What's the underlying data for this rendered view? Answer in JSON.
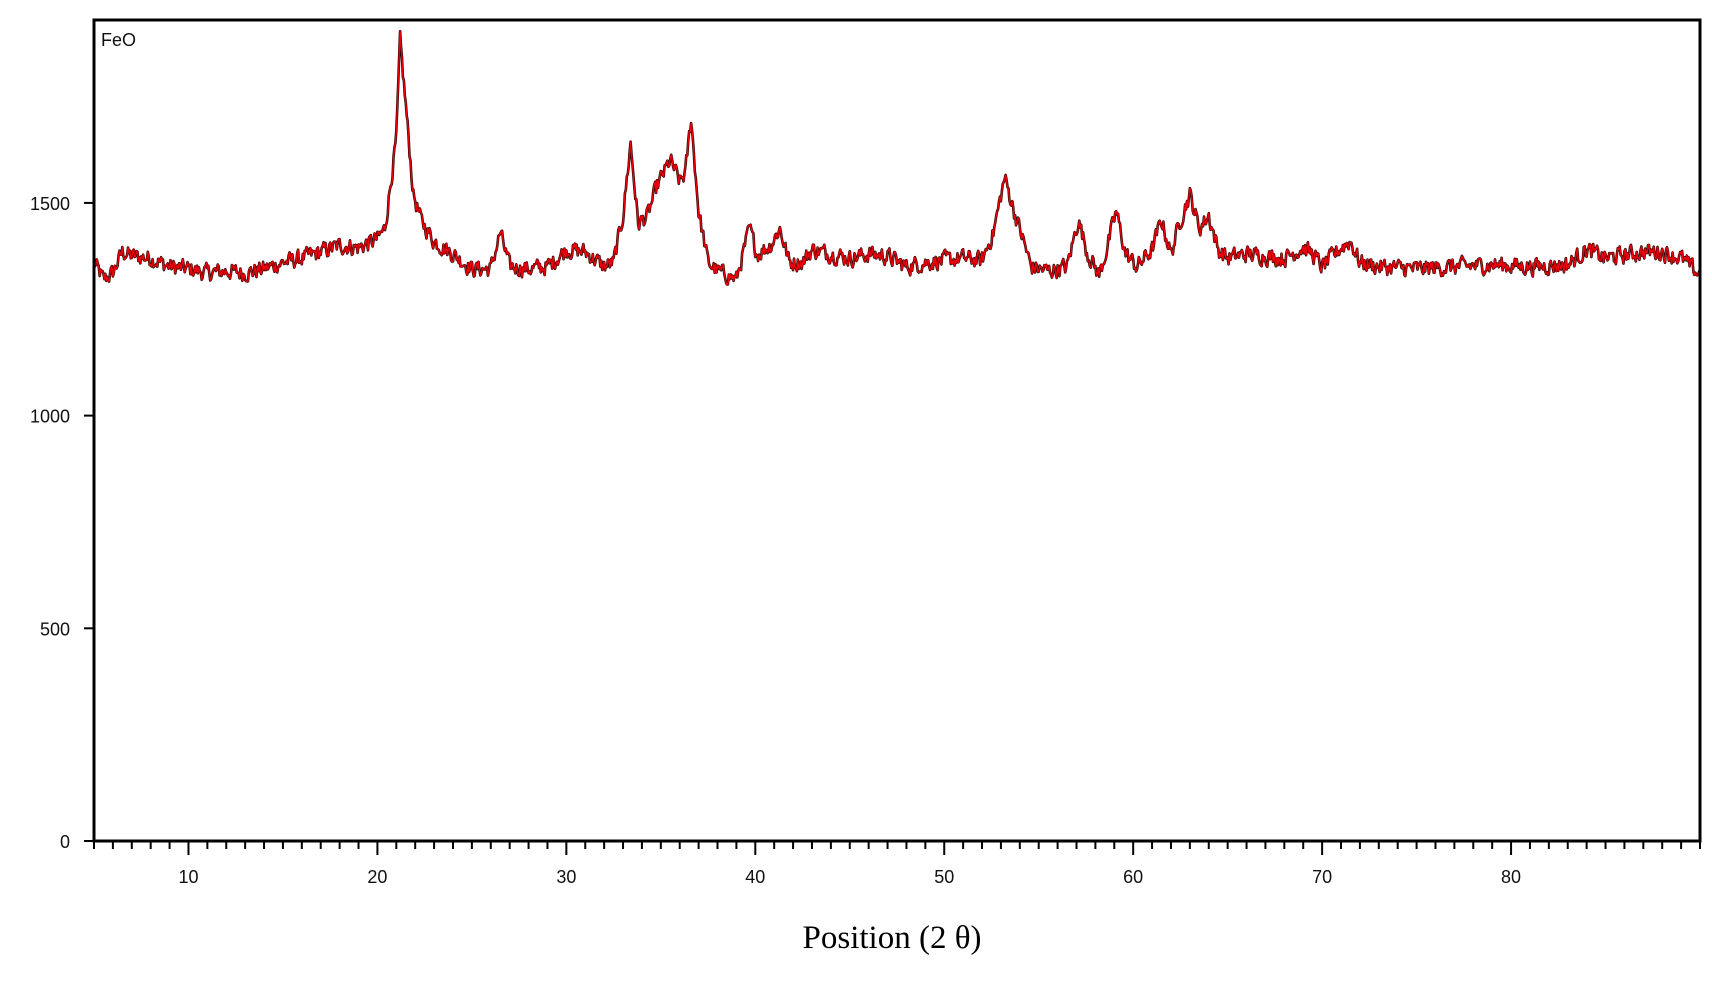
{
  "chart_data": {
    "type": "line",
    "title": "",
    "annotation": "FeO",
    "xlabel": "Position (2 θ)",
    "ylabel": "",
    "xlim": [
      5,
      90
    ],
    "ylim": [
      0,
      1930
    ],
    "x_ticks": [
      10,
      20,
      30,
      40,
      50,
      60,
      70,
      80
    ],
    "y_ticks": [
      0,
      500,
      1000,
      1500
    ],
    "x_minor_step": 1,
    "grid": false,
    "legend": "none",
    "series": [
      {
        "color": "#e8000b",
        "outline_color": "#2a0000",
        "baseline": [
          [
            5.0,
            1360
          ],
          [
            5.5,
            1320
          ],
          [
            6.0,
            1335
          ],
          [
            6.5,
            1385
          ],
          [
            7.0,
            1375
          ],
          [
            8.0,
            1370
          ],
          [
            9.0,
            1350
          ],
          [
            10.0,
            1345
          ],
          [
            11.0,
            1335
          ],
          [
            12.0,
            1340
          ],
          [
            13.0,
            1335
          ],
          [
            14.0,
            1345
          ],
          [
            15.0,
            1360
          ],
          [
            16.0,
            1370
          ],
          [
            17.0,
            1385
          ],
          [
            18.0,
            1400
          ],
          [
            19.0,
            1395
          ],
          [
            20.0,
            1415
          ],
          [
            20.4,
            1440
          ],
          [
            21.0,
            1650
          ],
          [
            21.2,
            1880
          ],
          [
            21.5,
            1730
          ],
          [
            21.9,
            1520
          ],
          [
            22.3,
            1460
          ],
          [
            23.0,
            1410
          ],
          [
            24.0,
            1380
          ],
          [
            25.0,
            1345
          ],
          [
            26.0,
            1345
          ],
          [
            26.5,
            1430
          ],
          [
            27.0,
            1350
          ],
          [
            28.0,
            1345
          ],
          [
            29.0,
            1350
          ],
          [
            30.0,
            1390
          ],
          [
            31.0,
            1385
          ],
          [
            32.0,
            1350
          ],
          [
            32.5,
            1360
          ],
          [
            33.0,
            1470
          ],
          [
            33.4,
            1640
          ],
          [
            33.8,
            1450
          ],
          [
            34.3,
            1470
          ],
          [
            34.8,
            1540
          ],
          [
            35.5,
            1600
          ],
          [
            36.0,
            1550
          ],
          [
            36.3,
            1570
          ],
          [
            36.6,
            1700
          ],
          [
            37.0,
            1480
          ],
          [
            37.5,
            1360
          ],
          [
            38.0,
            1340
          ],
          [
            39.0,
            1320
          ],
          [
            39.7,
            1440
          ],
          [
            40.1,
            1380
          ],
          [
            40.8,
            1400
          ],
          [
            41.3,
            1440
          ],
          [
            41.8,
            1360
          ],
          [
            42.5,
            1360
          ],
          [
            43.0,
            1390
          ],
          [
            44.0,
            1380
          ],
          [
            45.0,
            1370
          ],
          [
            46.0,
            1380
          ],
          [
            47.0,
            1375
          ],
          [
            48.0,
            1350
          ],
          [
            49.0,
            1360
          ],
          [
            50.0,
            1365
          ],
          [
            51.0,
            1370
          ],
          [
            52.0,
            1365
          ],
          [
            52.6,
            1430
          ],
          [
            53.2,
            1560
          ],
          [
            53.7,
            1480
          ],
          [
            54.2,
            1410
          ],
          [
            54.6,
            1350
          ],
          [
            55.5,
            1340
          ],
          [
            56.5,
            1350
          ],
          [
            57.1,
            1460
          ],
          [
            57.6,
            1380
          ],
          [
            58.2,
            1330
          ],
          [
            58.6,
            1390
          ],
          [
            59.1,
            1480
          ],
          [
            59.6,
            1380
          ],
          [
            60.2,
            1350
          ],
          [
            61.0,
            1390
          ],
          [
            61.5,
            1460
          ],
          [
            62.0,
            1380
          ],
          [
            62.5,
            1460
          ],
          [
            63.0,
            1520
          ],
          [
            63.5,
            1440
          ],
          [
            64.0,
            1470
          ],
          [
            64.5,
            1390
          ],
          [
            65.0,
            1370
          ],
          [
            66.0,
            1380
          ],
          [
            67.0,
            1375
          ],
          [
            68.0,
            1370
          ],
          [
            69.0,
            1395
          ],
          [
            69.5,
            1380
          ],
          [
            70.0,
            1350
          ],
          [
            71.0,
            1395
          ],
          [
            71.5,
            1410
          ],
          [
            72.0,
            1360
          ],
          [
            73.0,
            1350
          ],
          [
            75.0,
            1345
          ],
          [
            77.0,
            1350
          ],
          [
            79.0,
            1355
          ],
          [
            81.0,
            1350
          ],
          [
            83.0,
            1355
          ],
          [
            84.0,
            1390
          ],
          [
            85.0,
            1370
          ],
          [
            87.0,
            1385
          ],
          [
            88.0,
            1385
          ],
          [
            89.0,
            1370
          ],
          [
            90.0,
            1330
          ]
        ],
        "noise_amplitude": 28
      }
    ]
  }
}
